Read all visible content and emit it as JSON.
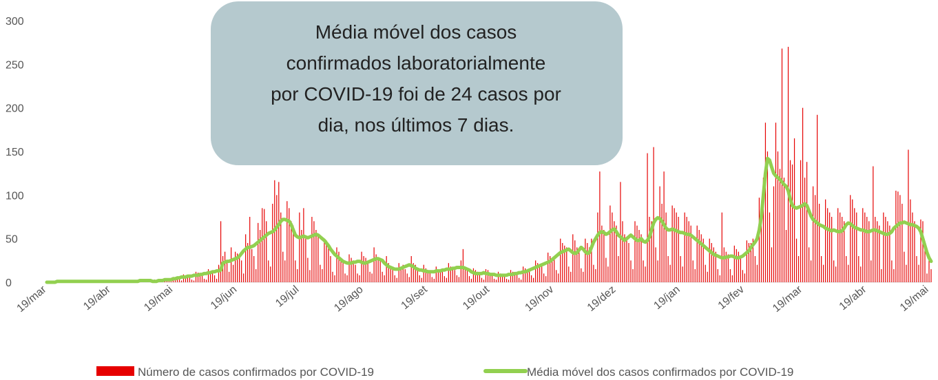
{
  "chart_data": {
    "type": "bar",
    "legend": "bottom",
    "annotation": [
      "Média móvel dos casos",
      "confirmados laboratorialmente",
      "por COVID-19 foi de 24 casos por",
      "dia, nos últimos 7 dias."
    ],
    "ylim": [
      0,
      300
    ],
    "yticks": [
      0,
      50,
      100,
      150,
      200,
      250,
      300
    ],
    "categories": [
      "19/mar",
      null,
      null,
      null,
      null,
      null,
      null,
      null,
      null,
      null,
      null,
      null,
      null,
      null,
      null,
      null,
      null,
      null,
      null,
      null,
      null,
      null,
      null,
      null,
      null,
      null,
      null,
      null,
      null,
      null,
      null,
      "19/abr",
      null,
      null,
      null,
      null,
      null,
      null,
      null,
      null,
      null,
      null,
      null,
      null,
      null,
      null,
      null,
      null,
      null,
      null,
      null,
      null,
      null,
      null,
      null,
      null,
      null,
      null,
      null,
      null,
      null,
      "19/mai",
      null,
      null,
      null,
      null,
      null,
      null,
      null,
      null,
      null,
      null,
      null,
      null,
      null,
      null,
      null,
      null,
      null,
      null,
      null,
      null,
      null,
      null,
      null,
      null,
      null,
      null,
      null,
      null,
      null,
      null,
      "19/jun",
      null,
      null,
      null,
      null,
      null,
      null,
      null,
      null,
      null,
      null,
      null,
      null,
      null,
      null,
      null,
      null,
      null,
      null,
      null,
      null,
      null,
      null,
      null,
      null,
      null,
      null,
      null,
      null,
      null,
      "19/jul",
      null,
      null,
      null,
      null,
      null,
      null,
      null,
      null,
      null,
      null,
      null,
      null,
      null,
      null,
      null,
      null,
      null,
      null,
      null,
      null,
      null,
      null,
      null,
      null,
      null,
      null,
      null,
      null,
      null,
      null,
      "19/ago",
      null,
      null,
      null,
      null,
      null,
      null,
      null,
      null,
      null,
      null,
      null,
      null,
      null,
      null,
      null,
      null,
      null,
      null,
      null,
      null,
      null,
      null,
      null,
      null,
      null,
      null,
      null,
      null,
      null,
      null,
      "19/set",
      null,
      null,
      null,
      null,
      null,
      null,
      null,
      null,
      null,
      null,
      null,
      null,
      null,
      null,
      null,
      null,
      null,
      null,
      null,
      null,
      null,
      null,
      null,
      null,
      null,
      null,
      null,
      null,
      null,
      "19/out",
      null,
      null,
      null,
      null,
      null,
      null,
      null,
      null,
      null,
      null,
      null,
      null,
      null,
      null,
      null,
      null,
      null,
      null,
      null,
      null,
      null,
      null,
      null,
      null,
      null,
      null,
      null,
      null,
      null,
      null,
      "19/nov",
      null,
      null,
      null,
      null,
      null,
      null,
      null,
      null,
      null,
      null,
      null,
      null,
      null,
      null,
      null,
      null,
      null,
      null,
      null,
      null,
      null,
      null,
      null,
      null,
      null,
      null,
      null,
      null,
      null,
      "19/dez",
      null,
      null,
      null,
      null,
      null,
      null,
      null,
      null,
      null,
      null,
      null,
      null,
      null,
      null,
      null,
      null,
      null,
      null,
      null,
      null,
      null,
      null,
      null,
      null,
      null,
      null,
      null,
      null,
      null,
      null,
      "19/jan",
      null,
      null,
      null,
      null,
      null,
      null,
      null,
      null,
      null,
      null,
      null,
      null,
      null,
      null,
      null,
      null,
      null,
      null,
      null,
      null,
      null,
      null,
      null,
      null,
      null,
      null,
      null,
      null,
      null,
      null,
      "19/fev",
      null,
      null,
      null,
      null,
      null,
      null,
      null,
      null,
      null,
      null,
      null,
      null,
      null,
      null,
      null,
      null,
      null,
      null,
      null,
      null,
      null,
      null,
      null,
      null,
      null,
      null,
      null,
      "19/mar",
      null,
      null,
      null,
      null,
      null,
      null,
      null,
      null,
      null,
      null,
      null,
      null,
      null,
      null,
      null,
      null,
      null,
      null,
      null,
      null,
      null,
      null,
      null,
      null,
      null,
      null,
      null,
      null,
      null,
      null,
      "19/abr",
      null,
      null,
      null,
      null,
      null,
      null,
      null,
      null,
      null,
      null,
      null,
      null,
      null,
      null,
      null,
      null,
      null,
      null,
      null,
      null,
      null,
      null,
      null,
      null,
      null,
      null,
      null,
      null,
      null,
      "19/mai",
      null
    ],
    "series": [
      {
        "name": "Número de casos confirmados por COVID-19",
        "type": "bar",
        "color": "#e60000",
        "values": [
          0,
          0,
          1,
          0,
          0,
          0,
          2,
          1,
          1,
          1,
          1,
          0,
          0,
          2,
          1,
          1,
          2,
          1,
          0,
          0,
          2,
          1,
          1,
          1,
          0,
          0,
          2,
          1,
          1,
          1,
          1,
          0,
          0,
          2,
          2,
          1,
          1,
          1,
          0,
          0,
          2,
          1,
          1,
          1,
          0,
          1,
          3,
          3,
          2,
          2,
          1,
          0,
          3,
          1,
          1,
          2,
          2,
          4,
          4,
          1,
          1,
          6,
          5,
          6,
          4,
          2,
          9,
          8,
          7,
          8,
          3,
          2,
          12,
          11,
          10,
          9,
          4,
          3,
          15,
          13,
          13,
          8,
          4,
          20,
          70,
          30,
          35,
          25,
          12,
          40,
          20,
          35,
          33,
          30,
          25,
          10,
          55,
          45,
          75,
          38,
          30,
          15,
          68,
          60,
          85,
          84,
          70,
          25,
          18,
          90,
          117,
          100,
          115,
          80,
          35,
          25,
          93,
          85,
          70,
          65,
          25,
          15,
          80,
          60,
          85,
          50,
          28,
          14,
          75,
          70,
          60,
          55,
          20,
          15,
          50,
          48,
          40,
          30,
          12,
          8,
          40,
          35,
          28,
          22,
          10,
          8,
          32,
          28,
          25,
          20,
          10,
          8,
          35,
          30,
          28,
          25,
          12,
          10,
          40,
          32,
          28,
          25,
          12,
          8,
          30,
          22,
          18,
          15,
          8,
          5,
          22,
          18,
          20,
          15,
          10,
          6,
          30,
          22,
          20,
          15,
          8,
          5,
          20,
          16,
          14,
          12,
          6,
          4,
          18,
          15,
          14,
          12,
          7,
          5,
          22,
          18,
          16,
          14,
          8,
          6,
          25,
          38,
          18,
          14,
          7,
          4,
          16,
          14,
          12,
          9,
          5,
          3,
          15,
          14,
          11,
          9,
          4,
          3,
          12,
          10,
          9,
          8,
          4,
          3,
          14,
          12,
          10,
          9,
          5,
          3,
          18,
          16,
          14,
          12,
          8,
          5,
          25,
          22,
          20,
          18,
          10,
          7,
          34,
          30,
          28,
          26,
          14,
          10,
          50,
          45,
          42,
          40,
          18,
          12,
          55,
          48,
          40,
          38,
          16,
          12,
          50,
          45,
          40,
          50,
          20,
          15,
          80,
          127,
          65,
          60,
          28,
          18,
          88,
          80,
          70,
          65,
          30,
          115,
          70,
          55,
          50,
          45,
          25,
          15,
          70,
          65,
          60,
          55,
          25,
          18,
          148,
          75,
          70,
          155,
          40,
          25,
          110,
          90,
          127,
          80,
          30,
          20,
          88,
          85,
          80,
          75,
          30,
          18,
          80,
          75,
          70,
          65,
          25,
          15,
          65,
          60,
          55,
          50,
          20,
          12,
          50,
          45,
          40,
          35,
          15,
          8,
          80,
          40,
          35,
          32,
          15,
          8,
          42,
          38,
          35,
          30,
          14,
          10,
          48,
          45,
          45,
          50,
          30,
          20,
          97,
          85,
          120,
          183,
          150,
          80,
          40,
          110,
          183,
          150,
          130,
          268,
          120,
          60,
          270,
          140,
          135,
          165,
          50,
          30,
          140,
          200,
          120,
          138,
          40,
          25,
          110,
          100,
          192,
          90,
          30,
          20,
          95,
          85,
          80,
          75,
          25,
          18,
          85,
          80,
          75,
          70,
          30,
          20,
          100,
          95,
          85,
          80,
          30,
          18,
          85,
          80,
          75,
          70,
          25,
          133,
          75,
          70,
          65,
          15,
          80,
          75,
          70,
          65,
          25,
          15,
          105,
          104,
          100,
          90,
          35,
          20,
          152,
          95,
          80,
          70,
          30,
          20,
          72,
          70,
          40,
          10,
          30,
          15
        ]
      },
      {
        "name": "Média móvel dos casos confirmados por COVID-19",
        "type": "line",
        "color": "#92d050",
        "values": [
          0,
          0,
          0,
          0,
          0,
          1,
          1,
          1,
          1,
          1,
          1,
          1,
          1,
          1,
          1,
          1,
          1,
          1,
          1,
          1,
          1,
          1,
          1,
          1,
          1,
          1,
          1,
          1,
          1,
          1,
          1,
          1,
          1,
          1,
          1,
          1,
          1,
          1,
          1,
          1,
          1,
          1,
          1,
          1,
          1,
          2,
          2,
          2,
          2,
          2,
          2,
          1,
          1,
          1,
          2,
          2,
          2,
          3,
          3,
          3,
          3,
          4,
          4,
          5,
          5,
          6,
          6,
          6,
          7,
          7,
          7,
          8,
          8,
          8,
          9,
          9,
          10,
          10,
          11,
          11,
          12,
          12,
          13,
          13,
          14,
          22,
          23,
          24,
          24,
          25,
          26,
          27,
          28,
          30,
          33,
          36,
          38,
          40,
          40,
          41,
          42,
          44,
          46,
          48,
          50,
          52,
          54,
          56,
          57,
          58,
          60,
          63,
          66,
          70,
          72,
          72,
          71,
          70,
          66,
          60,
          54,
          52,
          51,
          52,
          53,
          52,
          51,
          52,
          53,
          54,
          55,
          54,
          52,
          50,
          48,
          45,
          42,
          38,
          35,
          32,
          30,
          28,
          26,
          24,
          23,
          22,
          22,
          22,
          23,
          23,
          24,
          24,
          23,
          22,
          22,
          23,
          24,
          25,
          26,
          27,
          27,
          26,
          25,
          22,
          20,
          18,
          17,
          16,
          15,
          15,
          15,
          16,
          17,
          18,
          19,
          20,
          19,
          18,
          16,
          15,
          14,
          14,
          13,
          13,
          12,
          12,
          12,
          12,
          13,
          13,
          13,
          14,
          14,
          15,
          15,
          15,
          16,
          16,
          17,
          17,
          17,
          17,
          16,
          15,
          14,
          12,
          11,
          10,
          10,
          10,
          10,
          11,
          10,
          10,
          9,
          9,
          9,
          8,
          8,
          8,
          8,
          8,
          8,
          9,
          9,
          9,
          10,
          10,
          11,
          11,
          12,
          12,
          13,
          14,
          15,
          16,
          17,
          18,
          19,
          20,
          21,
          22,
          23,
          24,
          26,
          28,
          30,
          32,
          34,
          35,
          36,
          37,
          38,
          36,
          34,
          33,
          34,
          37,
          40,
          38,
          35,
          33,
          34,
          40,
          46,
          50,
          54,
          57,
          58,
          57,
          55,
          56,
          58,
          60,
          61,
          58,
          54,
          52,
          50,
          48,
          50,
          52,
          54,
          52,
          50,
          48,
          48,
          50,
          47,
          46,
          48,
          52,
          60,
          68,
          72,
          74,
          73,
          70,
          66,
          62,
          60,
          60,
          61,
          60,
          59,
          58,
          57,
          57,
          56,
          55,
          55,
          54,
          52,
          50,
          48,
          46,
          44,
          42,
          40,
          38,
          36,
          34,
          32,
          31,
          30,
          29,
          28,
          28,
          29,
          29,
          30,
          30,
          29,
          28,
          28,
          29,
          30,
          32,
          34,
          36,
          40,
          43,
          46,
          50,
          60,
          75,
          100,
          125,
          142,
          140,
          132,
          125,
          122,
          120,
          118,
          115,
          112,
          110,
          105,
          95,
          88,
          86,
          85,
          86,
          87,
          88,
          90,
          88,
          82,
          76,
          72,
          70,
          68,
          66,
          65,
          64,
          62,
          61,
          60,
          59,
          60,
          59,
          58,
          58,
          59,
          62,
          66,
          68,
          67,
          65,
          63,
          62,
          61,
          60,
          60,
          59,
          58,
          58,
          59,
          60,
          60,
          59,
          58,
          57,
          56,
          55,
          55,
          56,
          58,
          62,
          64,
          66,
          68,
          68,
          69,
          68,
          67,
          66,
          66,
          65,
          64,
          62,
          58,
          50,
          42,
          34,
          28,
          24
        ]
      }
    ]
  }
}
